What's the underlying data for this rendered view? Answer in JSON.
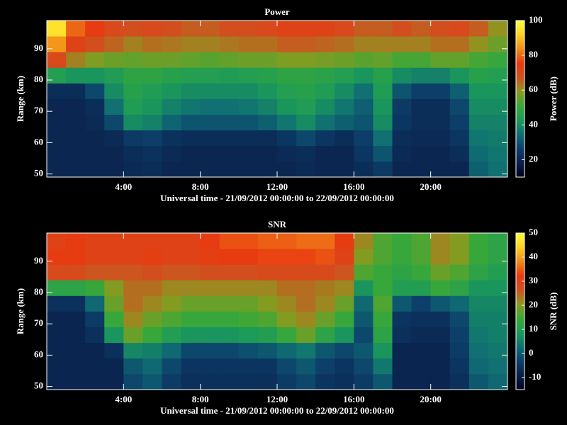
{
  "chart_data": [
    {
      "type": "heatmap",
      "title": "Power",
      "xlabel": "Universal time - 21/09/2012 00:00:00 to 22/09/2012 00:00:00",
      "ylabel": "Range (km)",
      "colorbar_label": "Power (dB)",
      "xlim": [
        0,
        24
      ],
      "xticks": [
        {
          "value": 4,
          "label": "4:00"
        },
        {
          "value": 8,
          "label": "8:00"
        },
        {
          "value": 12,
          "label": "12:00"
        },
        {
          "value": 16,
          "label": "16:00"
        },
        {
          "value": 20,
          "label": "20:00"
        }
      ],
      "ylim": [
        49,
        99
      ],
      "yticks": [
        50,
        60,
        70,
        80,
        90
      ],
      "zlim": [
        10,
        100
      ],
      "zticks": [
        20,
        40,
        60,
        80,
        100
      ],
      "colormap": [
        "#000020",
        "#0a1f4a",
        "#0c3f6a",
        "#0f6e73",
        "#1b9a5a",
        "#3aa838",
        "#8a9a20",
        "#d05020",
        "#e83a10",
        "#f08a18",
        "#ffd020",
        "#ffff40"
      ],
      "xbins": [
        0,
        1,
        2,
        3,
        4,
        5,
        6,
        7,
        8,
        9,
        10,
        11,
        12,
        13,
        14,
        15,
        16,
        17,
        18,
        19,
        20,
        21,
        22,
        23,
        24
      ],
      "ybins": [
        49,
        54,
        59,
        64,
        69,
        74,
        79,
        84,
        89,
        94,
        99
      ],
      "z": [
        [
          20,
          20,
          20,
          20,
          21,
          22,
          20,
          20,
          20,
          20,
          20,
          20,
          20,
          21,
          20,
          20,
          22,
          25,
          20,
          20,
          20,
          20,
          32,
          35
        ],
        [
          20,
          20,
          20,
          20,
          22,
          23,
          21,
          20,
          20,
          20,
          20,
          20,
          21,
          22,
          20,
          20,
          24,
          30,
          21,
          20,
          20,
          22,
          34,
          36
        ],
        [
          20,
          20,
          20,
          21,
          25,
          26,
          23,
          22,
          22,
          22,
          22,
          22,
          24,
          28,
          24,
          22,
          26,
          35,
          22,
          21,
          21,
          24,
          36,
          37
        ],
        [
          20,
          20,
          21,
          28,
          40,
          38,
          33,
          30,
          30,
          30,
          30,
          32,
          36,
          40,
          35,
          32,
          30,
          40,
          24,
          22,
          22,
          26,
          38,
          38
        ],
        [
          20,
          20,
          22,
          35,
          44,
          42,
          38,
          36,
          35,
          35,
          36,
          38,
          42,
          44,
          40,
          36,
          32,
          42,
          25,
          22,
          22,
          28,
          40,
          40
        ],
        [
          22,
          22,
          28,
          40,
          46,
          44,
          42,
          40,
          40,
          40,
          40,
          42,
          45,
          46,
          44,
          40,
          35,
          44,
          30,
          26,
          26,
          32,
          42,
          42
        ],
        [
          45,
          42,
          42,
          44,
          48,
          48,
          46,
          45,
          45,
          44,
          45,
          46,
          48,
          48,
          47,
          45,
          42,
          46,
          40,
          38,
          38,
          42,
          46,
          45
        ],
        [
          70,
          62,
          58,
          56,
          55,
          56,
          56,
          55,
          54,
          55,
          56,
          56,
          58,
          58,
          57,
          56,
          54,
          55,
          52,
          52,
          55,
          55,
          52,
          50
        ],
        [
          85,
          72,
          68,
          65,
          62,
          64,
          63,
          62,
          62,
          63,
          64,
          64,
          66,
          66,
          65,
          64,
          62,
          62,
          62,
          62,
          64,
          64,
          60,
          56
        ],
        [
          95,
          80,
          75,
          70,
          68,
          70,
          68,
          66,
          66,
          68,
          68,
          70,
          72,
          72,
          72,
          70,
          66,
          66,
          68,
          66,
          68,
          70,
          66,
          60
        ]
      ]
    },
    {
      "type": "heatmap",
      "title": "SNR",
      "xlabel": "Universal time - 21/09/2012 00:00:00 to 22/09/2012 00:00:00",
      "ylabel": "Range (km)",
      "colorbar_label": "SNR (dB)",
      "xlim": [
        0,
        24
      ],
      "xticks": [
        {
          "value": 4,
          "label": "4:00"
        },
        {
          "value": 8,
          "label": "8:00"
        },
        {
          "value": 12,
          "label": "12:00"
        },
        {
          "value": 16,
          "label": "16:00"
        },
        {
          "value": 20,
          "label": "20:00"
        }
      ],
      "ylim": [
        49,
        99
      ],
      "yticks": [
        50,
        60,
        70,
        80,
        90
      ],
      "zlim": [
        -15,
        50
      ],
      "zticks": [
        -10,
        0,
        10,
        20,
        30,
        40,
        50
      ],
      "colormap": [
        "#000020",
        "#0a1f4a",
        "#0c3f6a",
        "#0f6e73",
        "#1b9a5a",
        "#3aa838",
        "#8a9a20",
        "#d05020",
        "#e83a10",
        "#f08a18",
        "#ffd020",
        "#ffff40"
      ],
      "xbins": [
        0,
        1,
        2,
        3,
        4,
        5,
        6,
        7,
        8,
        9,
        10,
        11,
        12,
        13,
        14,
        15,
        16,
        17,
        18,
        19,
        20,
        21,
        22,
        23,
        24
      ],
      "ybins": [
        49,
        54,
        59,
        64,
        69,
        74,
        79,
        84,
        89,
        94,
        99
      ],
      "z": [
        [
          -8,
          -8,
          -8,
          -8,
          -2,
          0,
          -4,
          -6,
          -6,
          -6,
          -6,
          -6,
          -4,
          -2,
          -5,
          -6,
          -4,
          0,
          -8,
          -8,
          -8,
          -6,
          0,
          2
        ],
        [
          -8,
          -8,
          -8,
          -8,
          0,
          2,
          -2,
          -5,
          -5,
          -5,
          -5,
          -5,
          -2,
          0,
          -3,
          -5,
          -2,
          4,
          -8,
          -8,
          -8,
          -5,
          2,
          3
        ],
        [
          -8,
          -8,
          -8,
          -6,
          6,
          5,
          2,
          -2,
          -2,
          -2,
          -1,
          0,
          2,
          4,
          0,
          -2,
          0,
          8,
          -8,
          -8,
          -8,
          -4,
          3,
          4
        ],
        [
          -8,
          -8,
          -6,
          8,
          18,
          14,
          10,
          8,
          8,
          8,
          9,
          10,
          14,
          18,
          12,
          8,
          -2,
          12,
          -6,
          -7,
          -7,
          -3,
          4,
          5
        ],
        [
          -8,
          -8,
          -4,
          14,
          22,
          18,
          16,
          14,
          14,
          14,
          15,
          16,
          20,
          22,
          18,
          14,
          0,
          14,
          -5,
          -6,
          -6,
          -2,
          5,
          5
        ],
        [
          -6,
          -6,
          2,
          18,
          24,
          22,
          20,
          18,
          18,
          18,
          18,
          20,
          22,
          24,
          22,
          18,
          2,
          16,
          0,
          -3,
          0,
          2,
          6,
          6
        ],
        [
          12,
          12,
          14,
          20,
          24,
          24,
          22,
          22,
          22,
          22,
          22,
          22,
          24,
          24,
          23,
          22,
          8,
          14,
          10,
          10,
          14,
          12,
          8,
          8
        ],
        [
          28,
          28,
          26,
          26,
          26,
          27,
          26,
          26,
          27,
          27,
          27,
          28,
          28,
          28,
          28,
          26,
          16,
          14,
          12,
          14,
          18,
          16,
          12,
          10
        ],
        [
          32,
          32,
          30,
          30,
          30,
          31,
          30,
          30,
          31,
          32,
          32,
          33,
          33,
          33,
          34,
          30,
          20,
          16,
          14,
          16,
          22,
          20,
          14,
          12
        ],
        [
          30,
          32,
          30,
          30,
          30,
          30,
          30,
          30,
          32,
          34,
          34,
          35,
          35,
          36,
          36,
          32,
          22,
          16,
          14,
          16,
          22,
          20,
          14,
          12
        ]
      ]
    }
  ]
}
